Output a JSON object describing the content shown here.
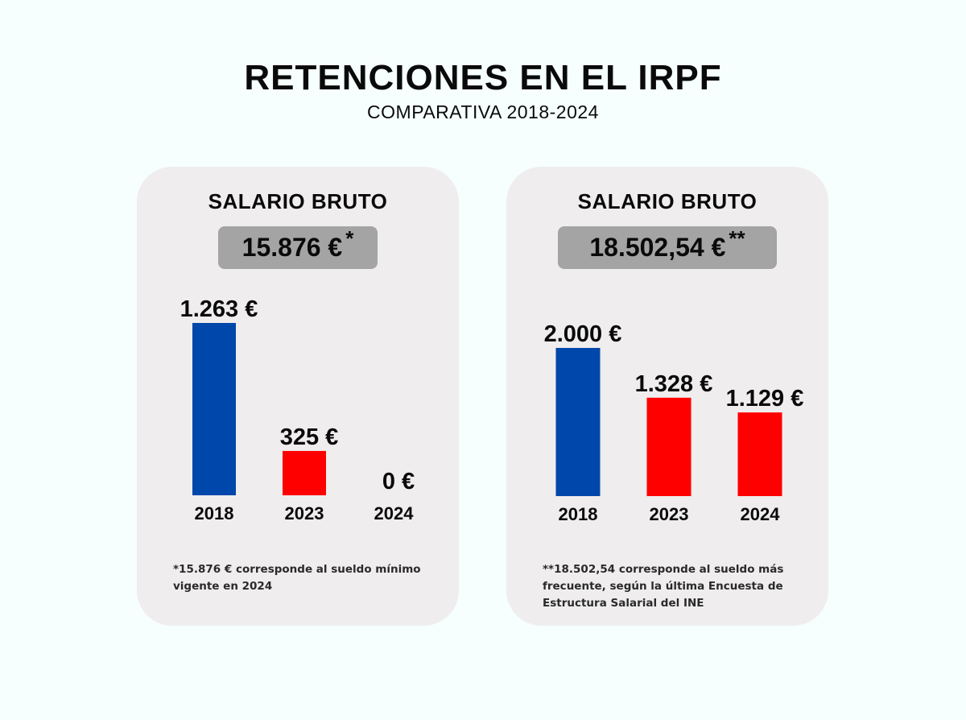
{
  "title": "RETENCIONES EN EL IRPF",
  "subtitle": "COMPARATIVA 2018-2024",
  "colors": {
    "year_2018": "#0047ab",
    "later_years": "#ff0000",
    "card_bg": "#efeded",
    "salary_box": "#a4a4a4"
  },
  "chart_data": [
    {
      "type": "bar",
      "title": "SALARIO BRUTO",
      "salary": "15.876 €",
      "salary_mark": "*",
      "categories": [
        "2018",
        "2023",
        "2024"
      ],
      "values": [
        1263,
        325,
        0
      ],
      "value_labels": [
        "1.263 €",
        "325 €",
        "0 €"
      ],
      "unit": "€",
      "ylim": [
        0,
        2000
      ],
      "grid": false,
      "note": "*15.876 € corresponde al sueldo mínimo vigente en 2024"
    },
    {
      "type": "bar",
      "title": "SALARIO BRUTO",
      "salary": "18.502,54 €",
      "salary_mark": "**",
      "categories": [
        "2018",
        "2023",
        "2024"
      ],
      "values": [
        2000,
        1328,
        1129
      ],
      "value_labels": [
        "2.000 €",
        "1.328 €",
        "1.129 €"
      ],
      "unit": "€",
      "ylim": [
        0,
        2000
      ],
      "grid": false,
      "note": "**18.502,54 corresponde al sueldo más frecuente, según la última Encuesta de Estructura Salarial del INE"
    }
  ]
}
